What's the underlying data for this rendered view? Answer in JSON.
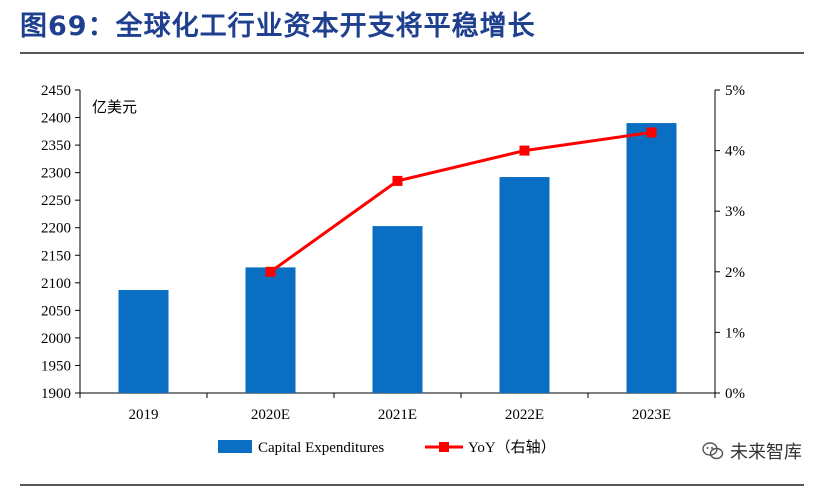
{
  "title": "图69：全球化工行业资本开支将平稳增长",
  "watermark": "未来智库",
  "chart_data": {
    "type": "bar",
    "categories": [
      "2019",
      "2020E",
      "2021E",
      "2022E",
      "2023E"
    ],
    "series": [
      {
        "name": "Capital Expenditures",
        "type": "bar",
        "axis": "left",
        "values": [
          2087,
          2128,
          2203,
          2292,
          2390
        ]
      },
      {
        "name": "YoY（右轴）",
        "type": "line",
        "axis": "right",
        "values": [
          null,
          2.0,
          3.5,
          4.0,
          4.3
        ]
      }
    ],
    "left_axis": {
      "label": "亿美元",
      "min": 1900,
      "max": 2450,
      "step": 50
    },
    "right_axis": {
      "min": 0,
      "max": 5,
      "step": 1,
      "suffix": "%"
    },
    "colors": {
      "bar": "#0a6fc2",
      "line": "#ff0000",
      "marker": "#ff0000"
    },
    "legend_position": "bottom"
  }
}
